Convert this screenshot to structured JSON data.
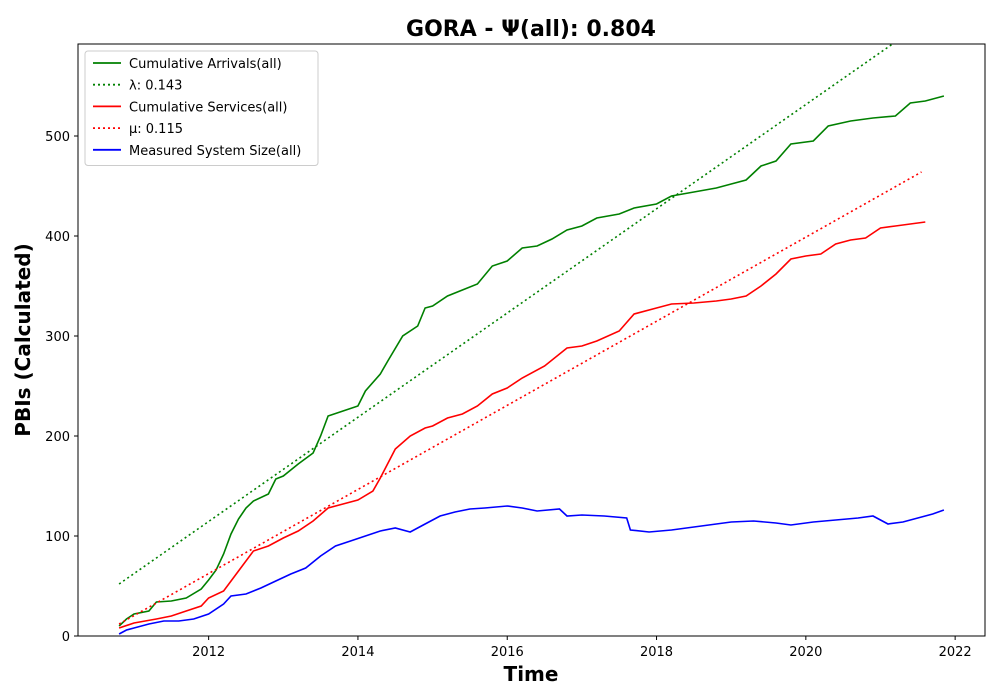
{
  "chart_data": {
    "type": "line",
    "title": "GORA -  Ψ(all): 0.804",
    "xlabel": "Time",
    "ylabel": "PBIs (Calculated)",
    "xlim": [
      2010.25,
      2022.4
    ],
    "ylim": [
      0,
      592
    ],
    "xticks": [
      2012,
      2014,
      2016,
      2018,
      2020,
      2022
    ],
    "yticks": [
      0,
      100,
      200,
      300,
      400,
      500
    ],
    "grid": false,
    "legend_position": "top-left",
    "series": [
      {
        "name": "Cumulative Arrivals(all)",
        "color": "#008000",
        "style": "solid",
        "x": [
          2010.8,
          2010.9,
          2011.0,
          2011.2,
          2011.3,
          2011.5,
          2011.7,
          2011.9,
          2012.0,
          2012.1,
          2012.2,
          2012.3,
          2012.4,
          2012.5,
          2012.6,
          2012.8,
          2012.9,
          2013.0,
          2013.2,
          2013.4,
          2013.5,
          2013.6,
          2013.8,
          2014.0,
          2014.1,
          2014.3,
          2014.4,
          2014.6,
          2014.8,
          2014.9,
          2015.0,
          2015.2,
          2015.4,
          2015.6,
          2015.8,
          2016.0,
          2016.2,
          2016.4,
          2016.6,
          2016.8,
          2017.0,
          2017.2,
          2017.5,
          2017.7,
          2018.0,
          2018.2,
          2018.5,
          2018.8,
          2019.0,
          2019.2,
          2019.4,
          2019.6,
          2019.8,
          2020.1,
          2020.3,
          2020.6,
          2020.9,
          2021.2,
          2021.4,
          2021.6,
          2021.85
        ],
        "values": [
          10,
          17,
          22,
          25,
          34,
          35,
          38,
          47,
          56,
          66,
          82,
          102,
          117,
          128,
          135,
          142,
          157,
          160,
          172,
          183,
          200,
          220,
          225,
          230,
          245,
          262,
          275,
          300,
          310,
          328,
          330,
          340,
          346,
          352,
          370,
          375,
          388,
          390,
          397,
          406,
          410,
          418,
          422,
          428,
          432,
          440,
          444,
          448,
          452,
          456,
          470,
          475,
          492,
          495,
          510,
          515,
          518,
          520,
          533,
          535,
          540
        ]
      },
      {
        "name": "λ: 0.143",
        "color": "#008000",
        "style": "dotted",
        "x": [
          2010.8,
          2021.2
        ],
        "values": [
          52,
          594
        ]
      },
      {
        "name": "Cumulative Services(all)",
        "color": "#ff0000",
        "style": "solid",
        "x": [
          2010.8,
          2011.0,
          2011.3,
          2011.5,
          2011.7,
          2011.9,
          2012.0,
          2012.2,
          2012.4,
          2012.6,
          2012.8,
          2013.0,
          2013.2,
          2013.4,
          2013.6,
          2013.8,
          2014.0,
          2014.2,
          2014.3,
          2014.5,
          2014.7,
          2014.9,
          2015.0,
          2015.2,
          2015.4,
          2015.6,
          2015.8,
          2016.0,
          2016.2,
          2016.5,
          2016.8,
          2017.0,
          2017.2,
          2017.5,
          2017.7,
          2018.0,
          2018.2,
          2018.5,
          2018.8,
          2019.0,
          2019.2,
          2019.4,
          2019.6,
          2019.8,
          2020.0,
          2020.2,
          2020.4,
          2020.6,
          2020.8,
          2021.0,
          2021.2,
          2021.4,
          2021.6
        ],
        "values": [
          8,
          13,
          17,
          20,
          25,
          30,
          38,
          45,
          65,
          85,
          90,
          98,
          105,
          115,
          128,
          132,
          136,
          145,
          158,
          187,
          200,
          208,
          210,
          218,
          222,
          230,
          242,
          248,
          258,
          270,
          288,
          290,
          295,
          305,
          322,
          328,
          332,
          333,
          335,
          337,
          340,
          350,
          362,
          377,
          380,
          382,
          392,
          396,
          398,
          408,
          410,
          412,
          414
        ]
      },
      {
        "name": "μ: 0.115",
        "color": "#ff0000",
        "style": "dotted",
        "x": [
          2010.8,
          2021.55
        ],
        "values": [
          12,
          464
        ]
      },
      {
        "name": "Measured System Size(all)",
        "color": "#0000ff",
        "style": "solid",
        "x": [
          2010.8,
          2010.9,
          2011.0,
          2011.2,
          2011.4,
          2011.6,
          2011.8,
          2012.0,
          2012.2,
          2012.3,
          2012.5,
          2012.7,
          2012.9,
          2013.1,
          2013.3,
          2013.5,
          2013.7,
          2013.9,
          2014.1,
          2014.3,
          2014.5,
          2014.7,
          2014.9,
          2015.1,
          2015.3,
          2015.5,
          2015.7,
          2016.0,
          2016.2,
          2016.4,
          2016.7,
          2016.8,
          2017.0,
          2017.3,
          2017.6,
          2017.65,
          2017.9,
          2018.2,
          2018.5,
          2018.8,
          2019.0,
          2019.3,
          2019.6,
          2019.8,
          2020.1,
          2020.4,
          2020.7,
          2020.9,
          2021.1,
          2021.3,
          2021.5,
          2021.7,
          2021.85
        ],
        "values": [
          2,
          6,
          8,
          12,
          15,
          15,
          17,
          22,
          32,
          40,
          42,
          48,
          55,
          62,
          68,
          80,
          90,
          95,
          100,
          105,
          108,
          104,
          112,
          120,
          124,
          127,
          128,
          130,
          128,
          125,
          127,
          120,
          121,
          120,
          118,
          106,
          104,
          106,
          109,
          112,
          114,
          115,
          113,
          111,
          114,
          116,
          118,
          120,
          112,
          114,
          118,
          122,
          126
        ]
      }
    ]
  }
}
